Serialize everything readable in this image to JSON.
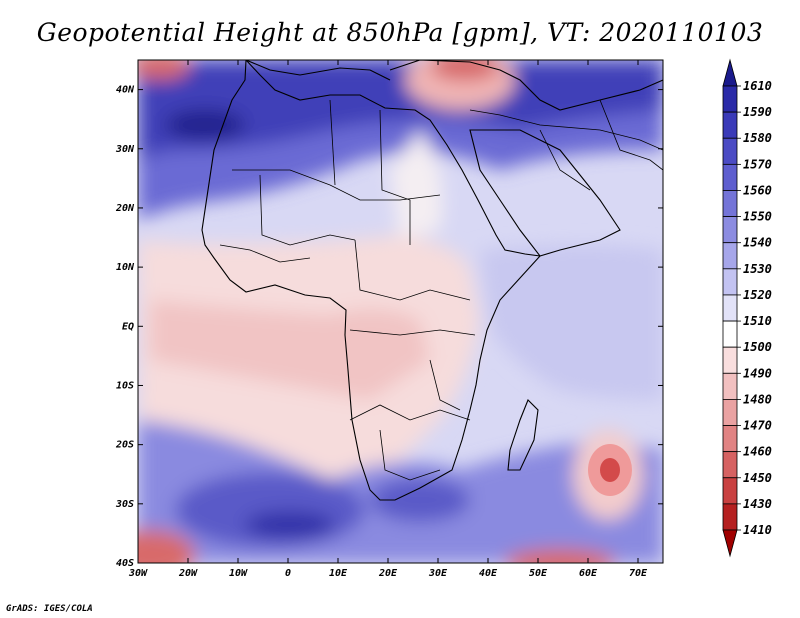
{
  "title": "Geopotential Height at 850hPa [gpm], VT: 2020110103",
  "footer": "GrADS: IGES/COLA",
  "latitude_labels": [
    "40N",
    "30N",
    "20N",
    "10N",
    "EQ",
    "10S",
    "20S",
    "30S",
    "40S"
  ],
  "latitude_values": [
    40,
    30,
    20,
    10,
    0,
    -10,
    -20,
    -30,
    -40
  ],
  "longitude_labels": [
    "30W",
    "20W",
    "10W",
    "0",
    "10E",
    "20E",
    "30E",
    "40E",
    "50E",
    "60E",
    "70E"
  ],
  "longitude_values": [
    -30,
    -20,
    -10,
    0,
    10,
    20,
    30,
    40,
    50,
    60,
    70
  ],
  "map_extent": {
    "lon_min": -30,
    "lon_max": 75,
    "lat_min": -40,
    "lat_max": 45
  },
  "colorbar": {
    "levels": [
      "1610",
      "1590",
      "1580",
      "1570",
      "1560",
      "1550",
      "1540",
      "1530",
      "1520",
      "1510",
      "1500",
      "1490",
      "1480",
      "1470",
      "1460",
      "1450",
      "1430",
      "1410"
    ],
    "colors": [
      "#1a1a8c",
      "#2a2aa8",
      "#3a3ab8",
      "#4b4bc4",
      "#5e5ecf",
      "#7474d8",
      "#8c8ce1",
      "#a6a6ea",
      "#c3c3f2",
      "#e2e2f8",
      "#ffffff",
      "#f9dede",
      "#f2c0c0",
      "#eaa2a2",
      "#e18383",
      "#d66262",
      "#c94141",
      "#b52020",
      "#a00000"
    ]
  },
  "colors": {
    "high": "#3a3ab8",
    "mid_high": "#a6a6ea",
    "neutral": "#ffffff",
    "mid_low": "#f2c0c0",
    "low": "#c94141",
    "border": "#000000"
  }
}
